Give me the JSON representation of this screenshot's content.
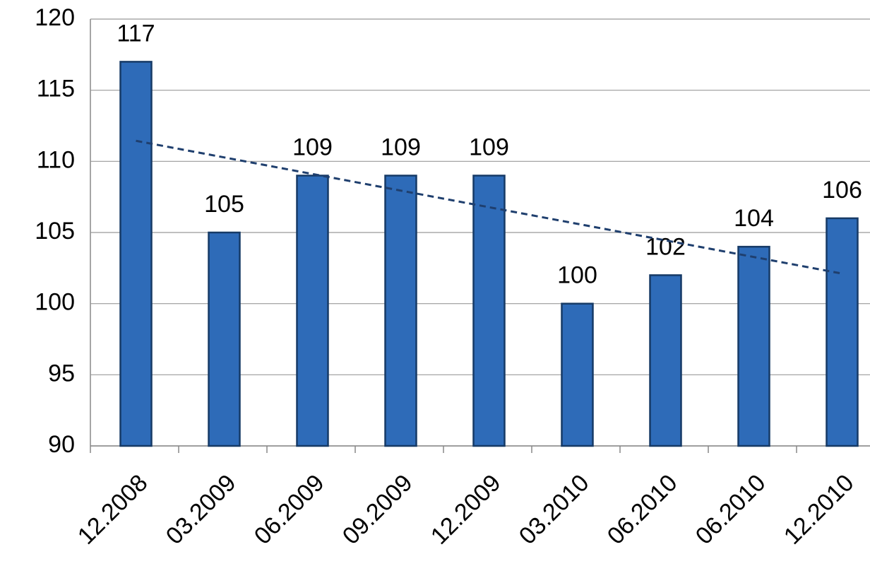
{
  "chart_data": {
    "type": "bar",
    "categories": [
      "12.2008",
      "03.2009",
      "06.2009",
      "09.2009",
      "12.2009",
      "03.2010",
      "06.2010",
      "06.2010",
      "12.2010"
    ],
    "values": [
      117,
      105,
      109,
      109,
      109,
      100,
      102,
      104,
      106
    ],
    "color": "#2e6bb8",
    "ylim": [
      90,
      120
    ],
    "yticks": [
      90,
      95,
      100,
      105,
      110,
      115,
      120
    ],
    "grid": true,
    "trendline": "linear",
    "trendline_color": "#1f3f6e"
  }
}
